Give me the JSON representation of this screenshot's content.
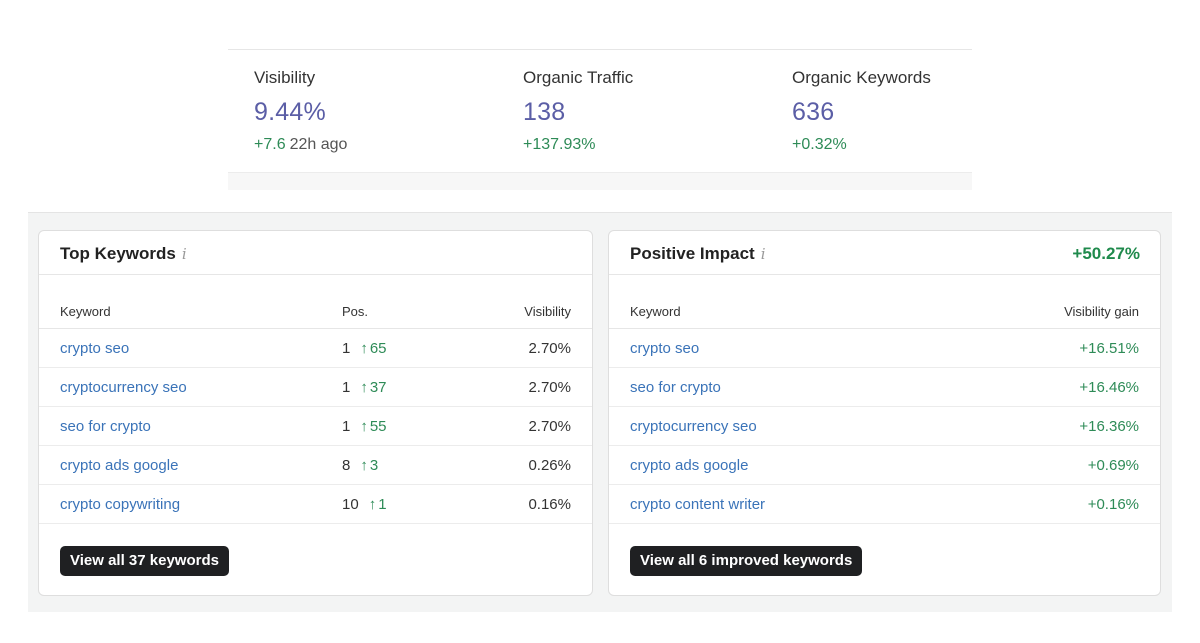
{
  "summary": {
    "visibility": {
      "label": "Visibility",
      "value": "9.44%",
      "delta": "+7.6",
      "ago": "22h ago"
    },
    "traffic": {
      "label": "Organic Traffic",
      "value": "138",
      "delta": "+137.93%"
    },
    "keywords": {
      "label": "Organic Keywords",
      "value": "636",
      "delta": "+0.32%"
    }
  },
  "top_keywords": {
    "title": "Top Keywords",
    "info_glyph": "i",
    "columns": {
      "keyword": "Keyword",
      "pos": "Pos.",
      "visibility": "Visibility"
    },
    "rows": [
      {
        "keyword": "crypto seo",
        "pos": "1",
        "arrow": "↑",
        "change": "65",
        "visibility": "2.70%"
      },
      {
        "keyword": "cryptocurrency seo",
        "pos": "1",
        "arrow": "↑",
        "change": "37",
        "visibility": "2.70%"
      },
      {
        "keyword": "seo for crypto",
        "pos": "1",
        "arrow": "↑",
        "change": "55",
        "visibility": "2.70%"
      },
      {
        "keyword": "crypto ads google",
        "pos": "8",
        "arrow": "↑",
        "change": "3",
        "visibility": "0.26%"
      },
      {
        "keyword": "crypto copywriting",
        "pos": "10",
        "arrow": "↑",
        "change": "1",
        "visibility": "0.16%"
      }
    ],
    "button_label": "View all 37 keywords"
  },
  "positive_impact": {
    "title": "Positive Impact",
    "info_glyph": "i",
    "impact": "+50.27%",
    "columns": {
      "keyword": "Keyword",
      "gain": "Visibility gain"
    },
    "rows": [
      {
        "keyword": "crypto seo",
        "gain": "+16.51%"
      },
      {
        "keyword": "seo for crypto",
        "gain": "+16.46%"
      },
      {
        "keyword": "cryptocurrency seo",
        "gain": "+16.36%"
      },
      {
        "keyword": "crypto ads google",
        "gain": "+0.69%"
      },
      {
        "keyword": "crypto content writer",
        "gain": "+0.16%"
      }
    ],
    "button_label": "View all 6 improved keywords"
  },
  "colors": {
    "metric_value": "#5b5ea6",
    "positive": "#2e8b57",
    "link": "#3a73b8",
    "button_bg": "#1f2022"
  }
}
